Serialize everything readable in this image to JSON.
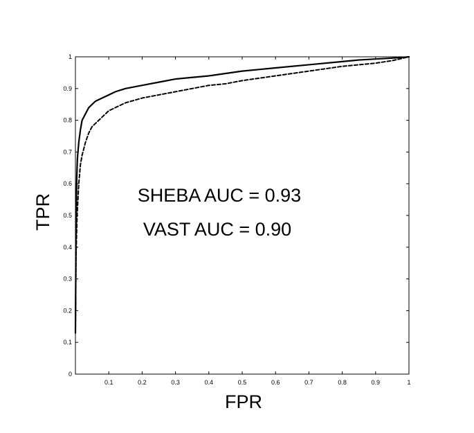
{
  "chart_data": {
    "type": "line",
    "title": "",
    "xlabel": "FPR",
    "ylabel": "TPR",
    "xlim": [
      0,
      1
    ],
    "ylim": [
      0,
      1
    ],
    "grid": false,
    "legend": "none",
    "x_ticks": [
      "0.1",
      "0.2",
      "0.3",
      "0.4",
      "0.5",
      "0.6",
      "0.7",
      "0.8",
      "0.9",
      "1"
    ],
    "y_ticks": [
      "0",
      "0.1",
      "0.2",
      "0.3",
      "0.4",
      "0.5",
      "0.6",
      "0.7",
      "0.8",
      "0.9",
      "1"
    ],
    "annotations": [
      "SHEBA AUC = 0.93",
      "VAST AUC = 0.90"
    ],
    "series": [
      {
        "style": "solid",
        "color": "#000000",
        "x": [
          0,
          0.002,
          0.004,
          0.006,
          0.01,
          0.015,
          0.02,
          0.03,
          0.04,
          0.05,
          0.06,
          0.08,
          0.1,
          0.12,
          0.15,
          0.2,
          0.25,
          0.3,
          0.35,
          0.4,
          0.5,
          0.6,
          0.7,
          0.8,
          0.85,
          0.9,
          0.95,
          0.98,
          1
        ],
        "y": [
          0.13,
          0.5,
          0.62,
          0.68,
          0.73,
          0.77,
          0.8,
          0.82,
          0.84,
          0.85,
          0.86,
          0.87,
          0.88,
          0.89,
          0.9,
          0.91,
          0.92,
          0.93,
          0.935,
          0.94,
          0.955,
          0.965,
          0.975,
          0.985,
          0.99,
          0.993,
          0.996,
          0.998,
          1
        ]
      },
      {
        "style": "dashed",
        "color": "#000000",
        "x": [
          0,
          0.002,
          0.005,
          0.01,
          0.015,
          0.02,
          0.03,
          0.04,
          0.05,
          0.06,
          0.08,
          0.1,
          0.12,
          0.15,
          0.2,
          0.25,
          0.3,
          0.35,
          0.4,
          0.45,
          0.5,
          0.6,
          0.7,
          0.8,
          0.9,
          0.95,
          1
        ],
        "y": [
          0.13,
          0.38,
          0.5,
          0.6,
          0.66,
          0.69,
          0.73,
          0.76,
          0.78,
          0.79,
          0.81,
          0.83,
          0.84,
          0.855,
          0.87,
          0.88,
          0.89,
          0.9,
          0.91,
          0.915,
          0.925,
          0.94,
          0.955,
          0.97,
          0.98,
          0.988,
          1
        ]
      }
    ]
  }
}
